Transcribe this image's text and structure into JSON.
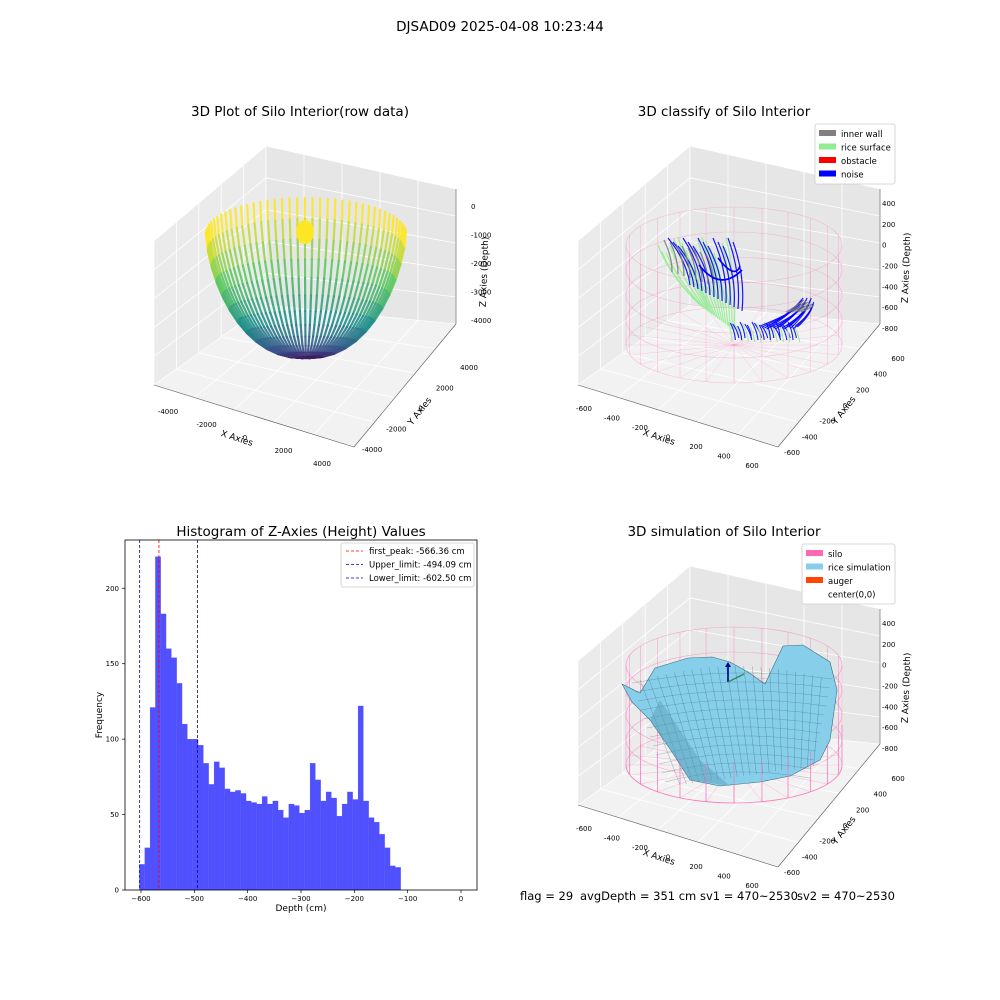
{
  "suptitle": "DJSAD09 2025-04-08 10:23:44",
  "footer": {
    "flag": "flag = 29",
    "avg_depth": "avgDepth = 351 cm",
    "sv1": "sv1 = 470~2530",
    "sv2": "sv2 = 470~2530"
  },
  "colors": {
    "inner_wall": "#808080",
    "rice_surface": "#90ee90",
    "obstacle": "#ff0000",
    "noise": "#0000ff",
    "silo": "#ff69b4",
    "rice_simulation": "#87ceeb",
    "auger": "#ff4500",
    "hist_bar": "#5050ff",
    "first_peak_line": "#ff0000",
    "limit_line": "#0000aa"
  },
  "chart_data": [
    {
      "type": "scatter",
      "subtype": "3d",
      "title": "3D Plot of Silo Interior(row data)",
      "xlabel": "X Axies",
      "ylabel": "Y Axies",
      "zlabel": "Z Axies (Depth)",
      "x_ticks": [
        "-4000",
        "-2000",
        "0",
        "2000",
        "4000"
      ],
      "y_ticks": [
        "-4000",
        "-2000",
        "0",
        "2000",
        "4000"
      ],
      "z_ticks": [
        "0",
        "-1000",
        "-2000",
        "-3000",
        "-4000"
      ],
      "colormap": "viridis",
      "grid": true
    },
    {
      "type": "scatter",
      "subtype": "3d",
      "title": "3D classify of Silo Interior",
      "xlabel": "X Axies",
      "ylabel": "Y Axies",
      "zlabel": "Z Axies (Depth)",
      "x_ticks": [
        "-600",
        "-400",
        "-200",
        "0",
        "200",
        "400",
        "600"
      ],
      "y_ticks": [
        "-600",
        "-400",
        "-200",
        "0",
        "200",
        "400",
        "600"
      ],
      "z_ticks": [
        "400",
        "200",
        "0",
        "-200",
        "-400",
        "-600",
        "-800"
      ],
      "legend": [
        "inner wall",
        "rice surface",
        "obstacle",
        "noise"
      ],
      "legend_position": "top-right",
      "grid": true
    },
    {
      "type": "bar",
      "subtype": "histogram",
      "title": "Histogram of Z-Axies (Height) Values",
      "xlabel": "Depth (cm)",
      "ylabel": "Frequency",
      "xlim": [
        -630,
        30
      ],
      "ylim": [
        0,
        232
      ],
      "x_ticks": [
        -600,
        -500,
        -400,
        -300,
        -200,
        -100,
        0
      ],
      "y_ticks": [
        0,
        50,
        100,
        150,
        200
      ],
      "bin_start": -603,
      "bin_width": 10,
      "values": [
        17,
        28,
        121,
        221,
        183,
        160,
        154,
        137,
        110,
        100,
        100,
        96,
        84,
        70,
        85,
        81,
        67,
        65,
        66,
        64,
        59,
        58,
        57,
        62,
        57,
        59,
        53,
        48,
        57,
        56,
        51,
        53,
        84,
        73,
        59,
        65,
        61,
        49,
        57,
        65,
        60,
        122,
        59,
        48,
        45,
        37,
        28,
        16,
        15
      ],
      "vlines": [
        {
          "label": "first_peak: -566.36 cm",
          "x": -566.36,
          "color": "#ff0000"
        },
        {
          "label": "Upper_limit: -494.09 cm",
          "x": -494.09,
          "color": "#0000aa"
        },
        {
          "label": "Lower_limit: -602.50 cm",
          "x": -602.5,
          "color": "#0000aa"
        }
      ],
      "legend_position": "top-right",
      "grid": false
    },
    {
      "type": "scatter",
      "subtype": "3d-surface",
      "title": "3D simulation of Silo Interior",
      "xlabel": "X Axies",
      "ylabel": "Y Axies",
      "zlabel": "Z Axies (Depth)",
      "x_ticks": [
        "-600",
        "-400",
        "-200",
        "0",
        "200",
        "400",
        "600"
      ],
      "y_ticks": [
        "-600",
        "-400",
        "-200",
        "0",
        "200",
        "400",
        "600"
      ],
      "z_ticks": [
        "400",
        "200",
        "0",
        "-200",
        "-400",
        "-600",
        "-800"
      ],
      "legend": [
        "silo",
        "rice simulation",
        "auger",
        "center(0,0)"
      ],
      "legend_position": "top-right",
      "grid": true
    }
  ]
}
